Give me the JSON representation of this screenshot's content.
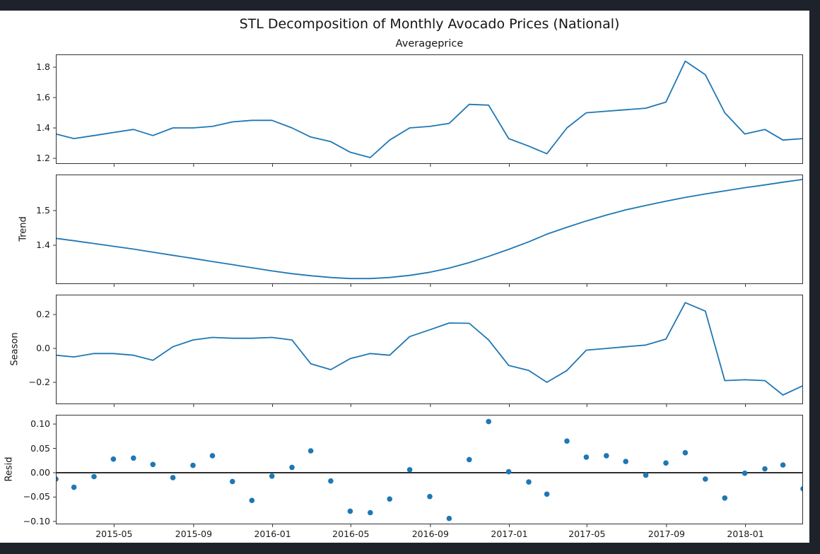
{
  "figure": {
    "background_color": "#1e222a",
    "canvas_color": "#ffffff",
    "line_color": "#1f77b4",
    "marker_color": "#1f77b4",
    "axhline_color": "#000000",
    "spine_color": "#333333",
    "text_color": "#151515"
  },
  "chart_data": {
    "type": "line-multi-panel",
    "title": "STL Decomposition of Monthly Avocado Prices (National)",
    "x_range": [
      "2015-01-31",
      "2018-03-31"
    ],
    "x": [
      "2015-01-31",
      "2015-02-28",
      "2015-03-31",
      "2015-04-30",
      "2015-05-31",
      "2015-06-30",
      "2015-07-31",
      "2015-08-31",
      "2015-09-30",
      "2015-10-31",
      "2015-11-30",
      "2015-12-31",
      "2016-01-31",
      "2016-02-29",
      "2016-03-31",
      "2016-04-30",
      "2016-05-31",
      "2016-06-30",
      "2016-07-31",
      "2016-08-31",
      "2016-09-30",
      "2016-10-31",
      "2016-11-30",
      "2016-12-31",
      "2017-01-31",
      "2017-02-28",
      "2017-03-31",
      "2017-04-30",
      "2017-05-31",
      "2017-06-30",
      "2017-07-31",
      "2017-08-31",
      "2017-09-30",
      "2017-10-31",
      "2017-11-30",
      "2017-12-31",
      "2018-01-31",
      "2018-02-28",
      "2018-03-31"
    ],
    "x_tick_dates": [
      "2015-05-01",
      "2015-09-01",
      "2016-01-01",
      "2016-05-01",
      "2016-09-01",
      "2017-01-01",
      "2017-05-01",
      "2017-09-01",
      "2018-01-01"
    ],
    "x_tick_labels": [
      "2015-05",
      "2015-09",
      "2016-01",
      "2016-05",
      "2016-09",
      "2017-01",
      "2017-05",
      "2017-09",
      "2018-01"
    ],
    "panels": [
      {
        "name": "observed",
        "type": "line",
        "title": "Averageprice",
        "ylabel": "",
        "ylim": [
          1.163,
          1.884
        ],
        "ytick_values": [
          1.2,
          1.4,
          1.6,
          1.8
        ],
        "ytick_labels": [
          "1.2",
          "1.4",
          "1.6",
          "1.8"
        ],
        "values": [
          1.36,
          1.33,
          1.35,
          1.37,
          1.39,
          1.35,
          1.4,
          1.4,
          1.41,
          1.44,
          1.45,
          1.45,
          1.4,
          1.34,
          1.31,
          1.24,
          1.205,
          1.32,
          1.4,
          1.41,
          1.43,
          1.555,
          1.55,
          1.33,
          1.28,
          1.23,
          1.4,
          1.5,
          1.51,
          1.52,
          1.53,
          1.57,
          1.84,
          1.75,
          1.5,
          1.36,
          1.39,
          1.32,
          1.33
        ]
      },
      {
        "name": "trend",
        "type": "line",
        "title": "",
        "ylabel": "Trend",
        "ylim": [
          1.288,
          1.604
        ],
        "ytick_values": [
          1.4,
          1.5
        ],
        "ytick_labels": [
          "1.4",
          "1.5"
        ],
        "values": [
          1.42,
          1.413,
          1.405,
          1.397,
          1.389,
          1.38,
          1.371,
          1.362,
          1.353,
          1.344,
          1.335,
          1.326,
          1.318,
          1.312,
          1.307,
          1.304,
          1.304,
          1.307,
          1.313,
          1.322,
          1.334,
          1.35,
          1.368,
          1.388,
          1.41,
          1.432,
          1.452,
          1.47,
          1.487,
          1.502,
          1.515,
          1.527,
          1.538,
          1.548,
          1.557,
          1.566,
          1.574,
          1.582,
          1.59
        ]
      },
      {
        "name": "seasonal",
        "type": "line",
        "title": "",
        "ylabel": "Season",
        "ylim": [
          -0.329,
          0.317
        ],
        "ytick_values": [
          -0.2,
          0.0,
          0.2
        ],
        "ytick_labels": [
          "−0.2",
          "0.0",
          "0.2"
        ],
        "values": [
          -0.04,
          -0.05,
          -0.03,
          -0.03,
          -0.04,
          -0.07,
          0.01,
          0.05,
          0.065,
          0.06,
          0.06,
          0.065,
          0.05,
          -0.09,
          -0.125,
          -0.06,
          -0.03,
          -0.04,
          0.07,
          0.11,
          0.15,
          0.148,
          0.05,
          -0.1,
          -0.13,
          -0.2,
          -0.13,
          -0.01,
          0.0,
          0.01,
          0.02,
          0.055,
          0.27,
          0.22,
          -0.19,
          -0.185,
          -0.19,
          -0.275,
          -0.22
        ]
      },
      {
        "name": "residual",
        "type": "scatter",
        "title": "",
        "ylabel": "Resid",
        "ylim": [
          -0.106,
          0.119
        ],
        "ytick_values": [
          -0.1,
          -0.05,
          0.0,
          0.05,
          0.1
        ],
        "ytick_labels": [
          "−0.10",
          "−0.05",
          "0.00",
          "0.05",
          "0.10"
        ],
        "axhline": 0.0,
        "values": [
          -0.013,
          -0.03,
          -0.008,
          0.028,
          0.03,
          0.017,
          -0.01,
          0.015,
          0.035,
          -0.018,
          -0.057,
          -0.007,
          0.011,
          0.045,
          -0.017,
          -0.079,
          -0.082,
          -0.054,
          0.006,
          -0.049,
          -0.094,
          0.027,
          0.105,
          0.002,
          -0.019,
          -0.044,
          0.065,
          0.032,
          0.035,
          0.023,
          -0.005,
          0.02,
          0.041,
          -0.013,
          -0.052,
          -0.001,
          0.008,
          0.016,
          -0.033
        ]
      }
    ]
  }
}
